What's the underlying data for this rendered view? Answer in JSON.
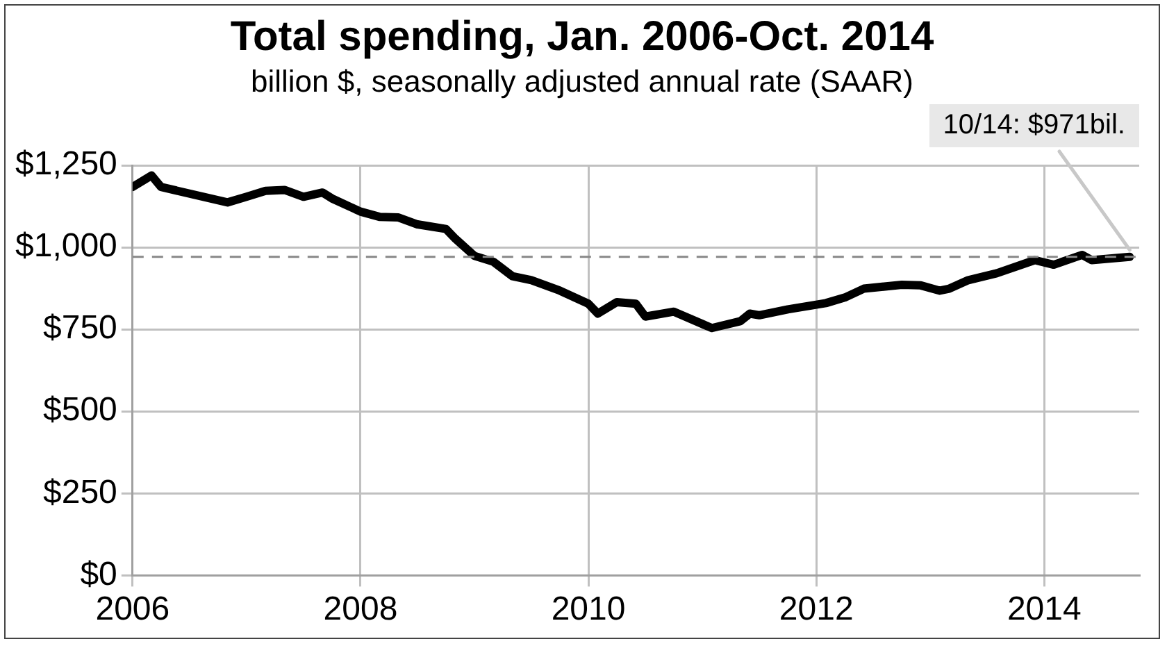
{
  "chart_data": {
    "type": "line",
    "title": "Total spending, Jan. 2006-Oct. 2014",
    "subtitle": "billion $, seasonally adjusted annual rate (SAAR)",
    "x": [
      "2006-01",
      "2006-03",
      "2006-04",
      "2006-11",
      "2007-01",
      "2007-03",
      "2007-05",
      "2007-07",
      "2007-09",
      "2007-10",
      "2008-01",
      "2008-03",
      "2008-05",
      "2008-07",
      "2008-10",
      "2008-11",
      "2009-01",
      "2009-03",
      "2009-05",
      "2009-07",
      "2009-10",
      "2010-01",
      "2010-02",
      "2010-04",
      "2010-06",
      "2010-07",
      "2010-10",
      "2011-02",
      "2011-05",
      "2011-06",
      "2011-07",
      "2011-10",
      "2012-02",
      "2012-04",
      "2012-06",
      "2012-10",
      "2012-12",
      "2013-02",
      "2013-03",
      "2013-05",
      "2013-08",
      "2013-12",
      "2014-02",
      "2014-05",
      "2014-06",
      "2014-10"
    ],
    "series": [
      {
        "color": "#000000",
        "values": [
          1184,
          1219,
          1184,
          1137,
          1154,
          1172,
          1175,
          1154,
          1167,
          1149,
          1109,
          1093,
          1091,
          1070,
          1056,
          1026,
          974,
          956,
          912,
          900,
          868,
          828,
          798,
          833,
          828,
          789,
          804,
          754,
          775,
          798,
          793,
          811,
          830,
          847,
          874,
          886,
          884,
          868,
          874,
          900,
          921,
          961,
          947,
          977,
          961,
          971
        ]
      }
    ],
    "xlim": [
      "2006-01",
      "2014-11"
    ],
    "xticks": [
      "2006",
      "2008",
      "2010",
      "2012",
      "2014"
    ],
    "ylim": [
      0,
      1250
    ],
    "yticks": [
      {
        "value": 0,
        "label": "$0"
      },
      {
        "value": 250,
        "label": "$250"
      },
      {
        "value": 500,
        "label": "$500"
      },
      {
        "value": 750,
        "label": "$750"
      },
      {
        "value": 1000,
        "label": "$1,000"
      },
      {
        "value": 1250,
        "label": "$1,250"
      }
    ],
    "ref_lines": [
      {
        "axis": "y",
        "value": 971,
        "color": "#888888",
        "line_style": "dashed"
      }
    ],
    "annotations": [
      {
        "text": "10/14: $971bil.",
        "x": "2014-10",
        "y": 971
      }
    ],
    "grid": true,
    "legend": false,
    "marker": "none",
    "line_style": "solid"
  }
}
